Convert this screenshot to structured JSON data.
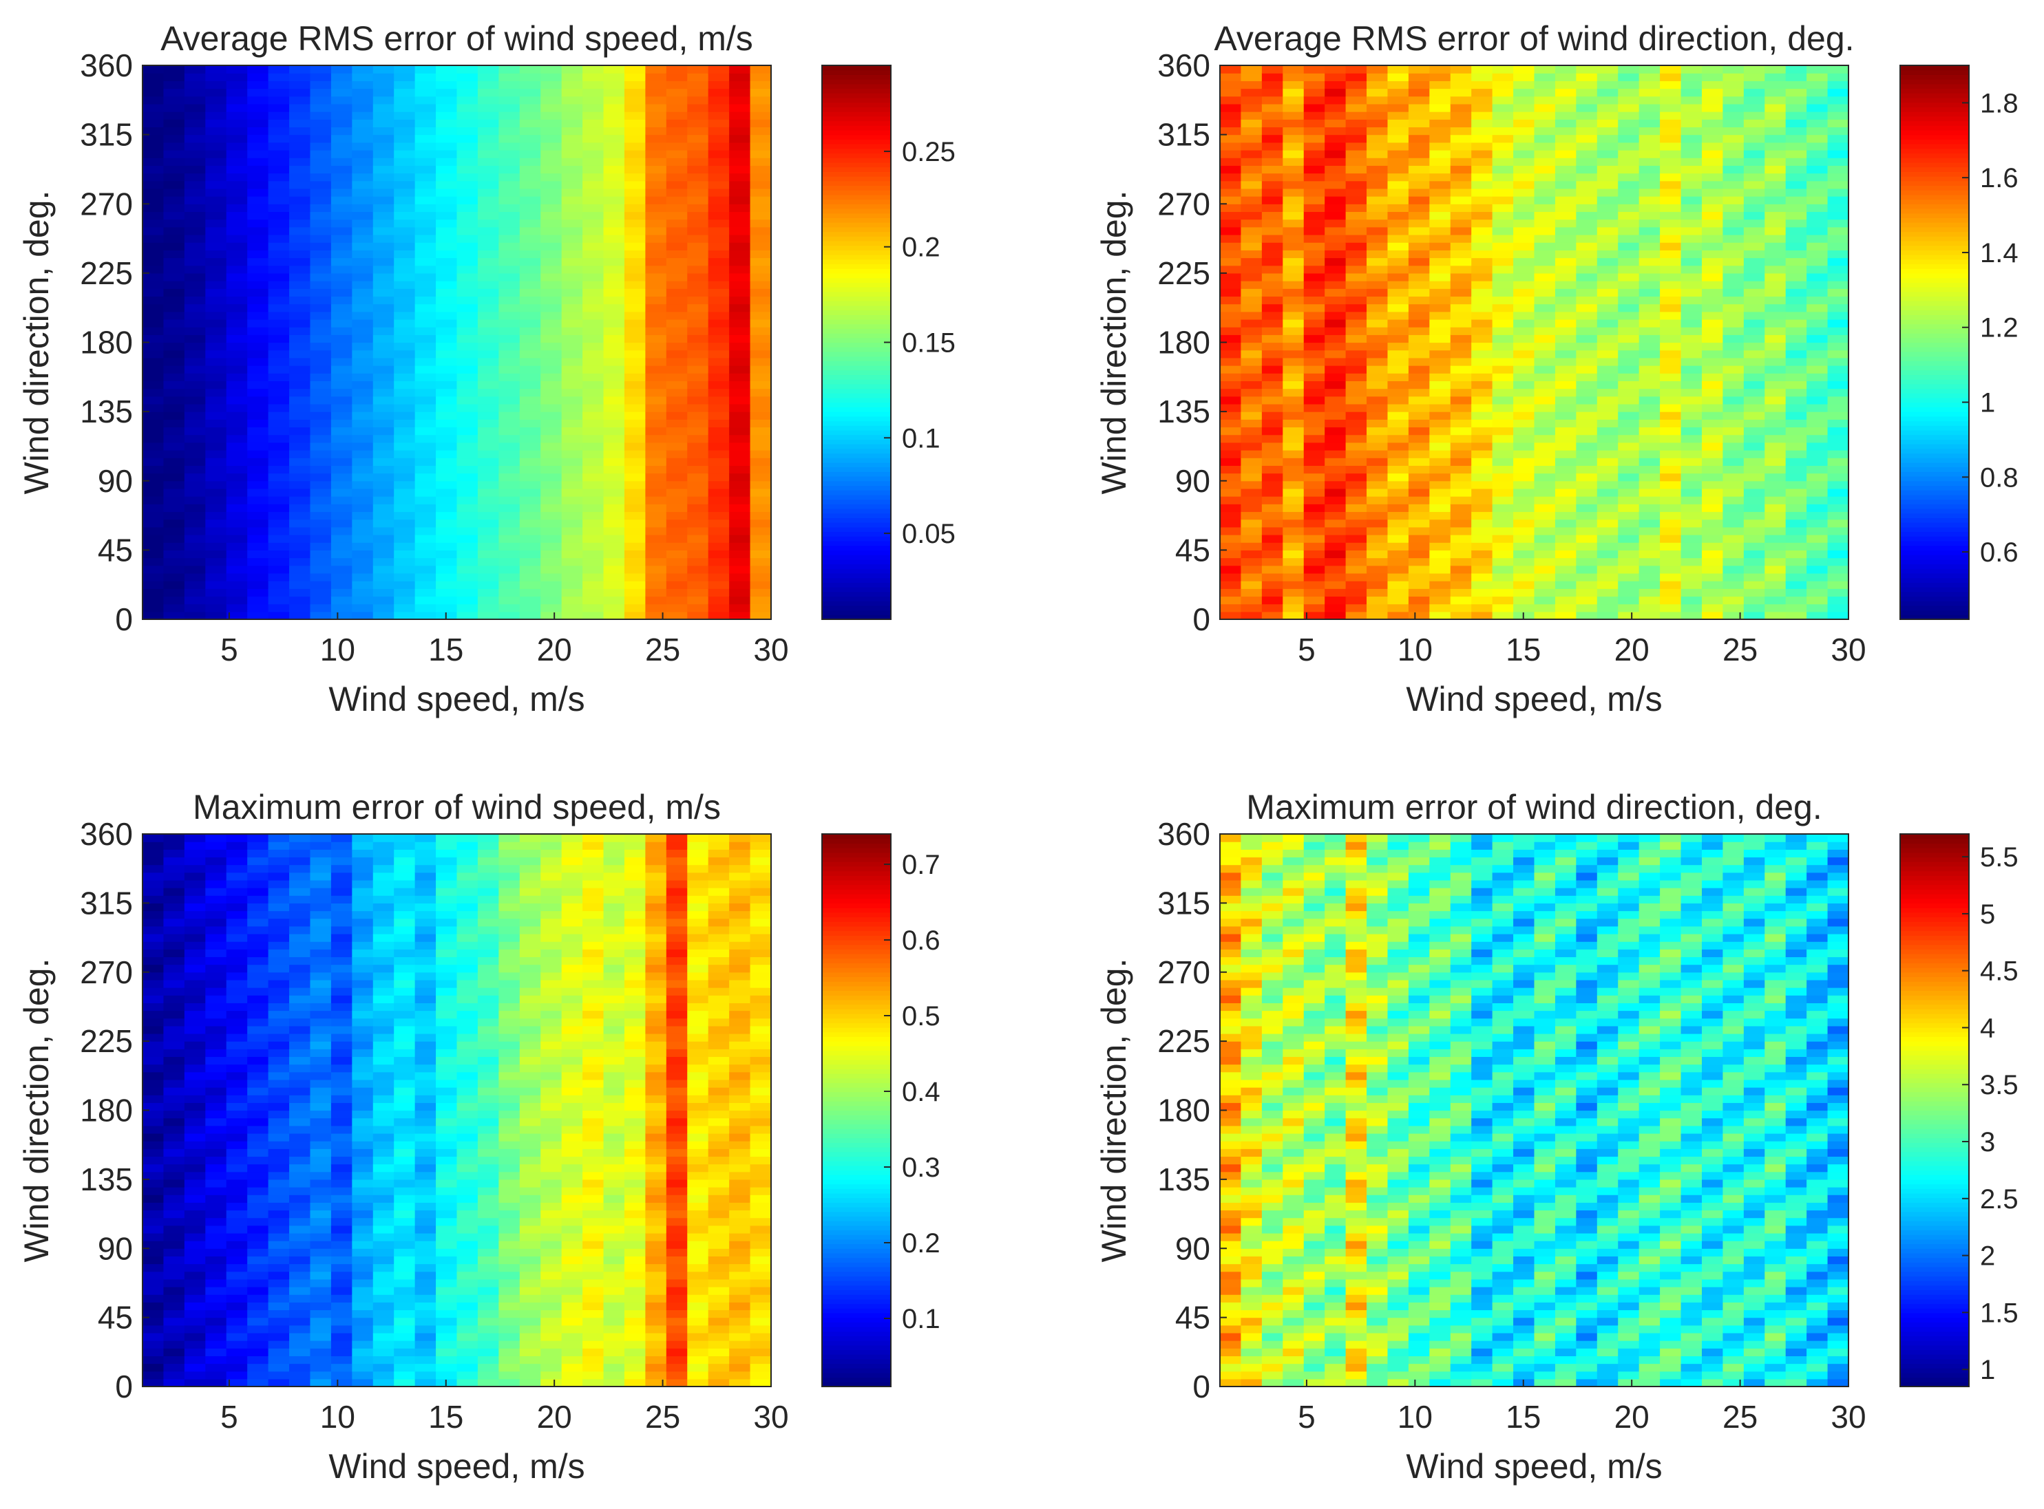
{
  "chart_data": [
    {
      "type": "heatmap",
      "title": "Average RMS error of wind speed, m/s",
      "xlabel": "Wind speed, m/s",
      "ylabel": "Wind direction, deg.",
      "xlim": [
        1,
        30
      ],
      "ylim": [
        0,
        360
      ],
      "xticks": [
        5,
        10,
        15,
        20,
        25,
        30
      ],
      "yticks": [
        0,
        45,
        90,
        135,
        180,
        225,
        270,
        315,
        360
      ],
      "colorbar": {
        "min": 0.005,
        "max": 0.295,
        "ticks": [
          0.05,
          0.1,
          0.15,
          0.2,
          0.25
        ],
        "colormap": "jet"
      },
      "columns_x": [
        1,
        2,
        3,
        4,
        5,
        6,
        7,
        8,
        9,
        10,
        11,
        12,
        13,
        14,
        15,
        16,
        17,
        18,
        19,
        20,
        21,
        22,
        23,
        24,
        25,
        26,
        27,
        28,
        29,
        30
      ],
      "column_values": [
        0.007,
        0.01,
        0.016,
        0.024,
        0.032,
        0.041,
        0.049,
        0.057,
        0.066,
        0.075,
        0.082,
        0.09,
        0.098,
        0.106,
        0.113,
        0.12,
        0.128,
        0.135,
        0.142,
        0.15,
        0.16,
        0.167,
        0.175,
        0.195,
        0.225,
        0.23,
        0.232,
        0.245,
        0.265,
        0.218
      ],
      "variation_along_direction": 0.006
    },
    {
      "type": "heatmap",
      "title": "Average RMS error of wind direction, deg.",
      "xlabel": "Wind speed, m/s",
      "ylabel": "Wind direction, deg.",
      "xlim": [
        1,
        30
      ],
      "ylim": [
        0,
        360
      ],
      "xticks": [
        5,
        10,
        15,
        20,
        25,
        30
      ],
      "yticks": [
        0,
        45,
        90,
        135,
        180,
        225,
        270,
        315,
        360
      ],
      "colorbar": {
        "min": 0.42,
        "max": 1.9,
        "ticks": [
          0.6,
          0.8,
          1,
          1.2,
          1.4,
          1.6,
          1.8
        ],
        "colormap": "jet"
      },
      "columns_x": [
        1,
        2,
        3,
        4,
        5,
        6,
        7,
        8,
        9,
        10,
        11,
        12,
        13,
        14,
        15,
        16,
        17,
        18,
        19,
        20,
        21,
        22,
        23,
        24,
        25,
        26,
        27,
        28,
        29,
        30
      ],
      "column_values": [
        1.62,
        1.55,
        1.6,
        1.48,
        1.62,
        1.65,
        1.58,
        1.5,
        1.45,
        1.48,
        1.42,
        1.44,
        1.38,
        1.3,
        1.28,
        1.26,
        1.25,
        1.23,
        1.22,
        1.2,
        1.21,
        1.32,
        1.2,
        1.26,
        1.18,
        1.15,
        1.2,
        1.12,
        1.1,
        1.08
      ],
      "variation_along_direction": 0.1
    },
    {
      "type": "heatmap",
      "title": "Maximum error of wind speed, m/s",
      "xlabel": "Wind speed, m/s",
      "ylabel": "Wind direction, deg.",
      "xlim": [
        1,
        30
      ],
      "ylim": [
        0,
        360
      ],
      "xticks": [
        5,
        10,
        15,
        20,
        25,
        30
      ],
      "yticks": [
        0,
        45,
        90,
        135,
        180,
        225,
        270,
        315,
        360
      ],
      "colorbar": {
        "min": 0.01,
        "max": 0.74,
        "ticks": [
          0.1,
          0.2,
          0.3,
          0.4,
          0.5,
          0.6,
          0.7
        ],
        "colormap": "jet"
      },
      "columns_x": [
        1,
        2,
        3,
        4,
        5,
        6,
        7,
        8,
        9,
        10,
        11,
        12,
        13,
        14,
        15,
        16,
        17,
        18,
        19,
        20,
        21,
        22,
        23,
        24,
        25,
        26,
        27,
        28,
        29,
        30
      ],
      "column_values": [
        0.04,
        0.05,
        0.07,
        0.09,
        0.11,
        0.13,
        0.15,
        0.17,
        0.19,
        0.16,
        0.22,
        0.25,
        0.27,
        0.24,
        0.29,
        0.31,
        0.33,
        0.37,
        0.4,
        0.42,
        0.44,
        0.46,
        0.43,
        0.45,
        0.52,
        0.6,
        0.48,
        0.5,
        0.51,
        0.49
      ],
      "variation_along_direction": 0.03
    },
    {
      "type": "heatmap",
      "title": "Maximum error of wind direction, deg.",
      "xlabel": "Wind speed, m/s",
      "ylabel": "Wind direction, deg.",
      "xlim": [
        1,
        30
      ],
      "ylim": [
        0,
        360
      ],
      "xticks": [
        5,
        10,
        15,
        20,
        25,
        30
      ],
      "yticks": [
        0,
        45,
        90,
        135,
        180,
        225,
        270,
        315,
        360
      ],
      "colorbar": {
        "min": 0.85,
        "max": 5.7,
        "ticks": [
          1,
          1.5,
          2,
          2.5,
          3,
          3.5,
          4,
          4.5,
          5,
          5.5
        ],
        "colormap": "jet"
      },
      "columns_x": [
        1,
        2,
        3,
        4,
        5,
        6,
        7,
        8,
        9,
        10,
        11,
        12,
        13,
        14,
        15,
        16,
        17,
        18,
        19,
        20,
        21,
        22,
        23,
        24,
        25,
        26,
        27,
        28,
        29,
        30
      ],
      "column_values": [
        4.2,
        3.8,
        3.5,
        3.6,
        3.4,
        3.3,
        3.9,
        3.4,
        3.2,
        3.0,
        3.1,
        3.0,
        2.6,
        2.7,
        2.6,
        2.9,
        2.8,
        2.5,
        2.7,
        2.8,
        2.9,
        3.0,
        2.8,
        2.7,
        2.8,
        2.7,
        2.9,
        2.6,
        2.5,
        2.4
      ],
      "variation_along_direction": 0.5
    }
  ]
}
